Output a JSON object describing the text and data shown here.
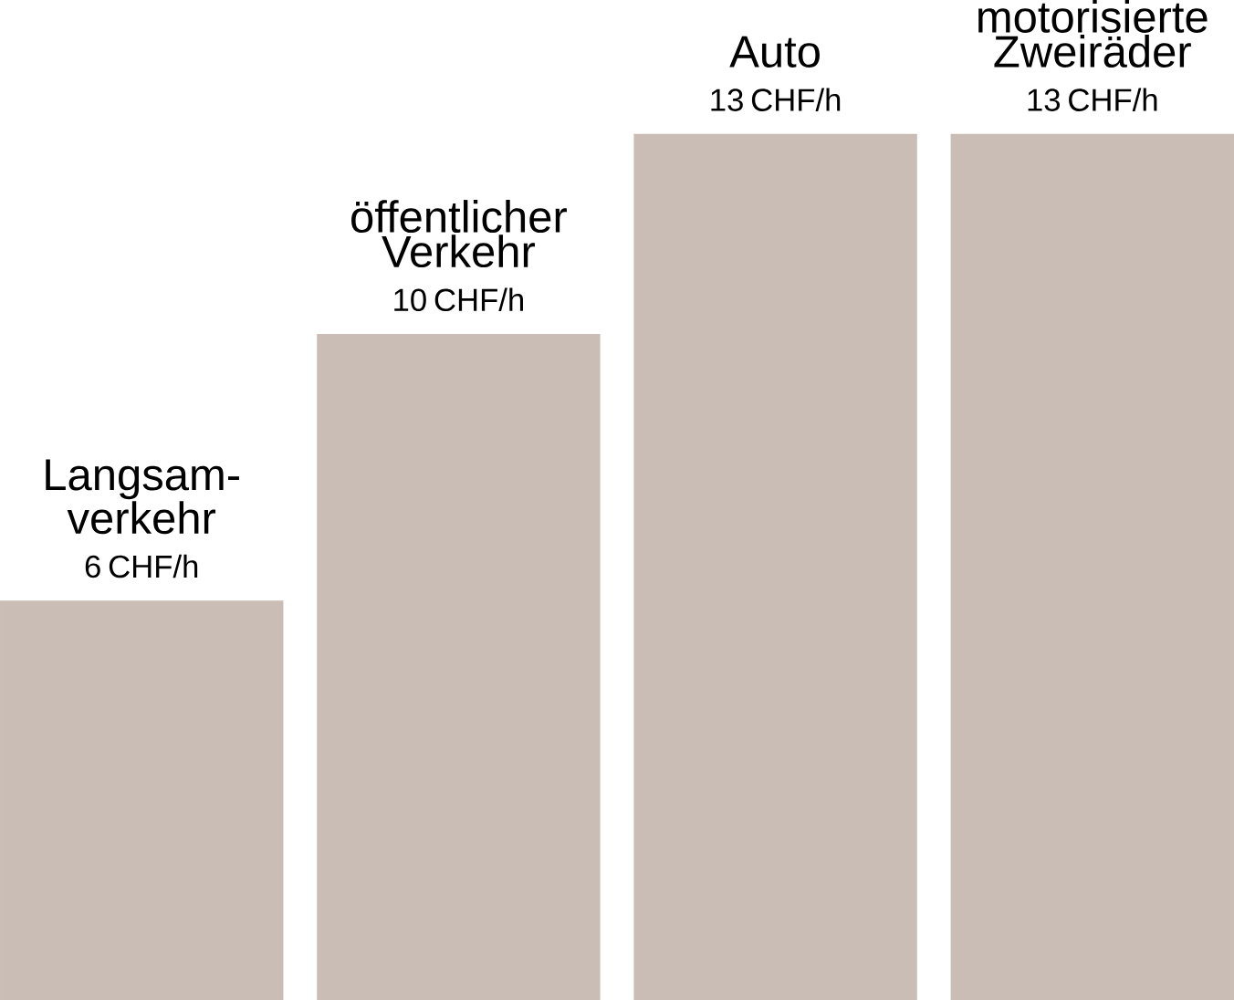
{
  "chart_data": {
    "type": "bar",
    "categories": [
      "Langsam-verkehr",
      "öffentlicher Verkehr",
      "Auto",
      "motorisierte Zweiräder"
    ],
    "values": [
      6,
      10,
      13,
      13
    ],
    "value_labels": [
      "6 CHF/h",
      "10 CHF/h",
      "13 CHF/h",
      "13 CHF/h"
    ],
    "color": "#c9bdb5"
  }
}
